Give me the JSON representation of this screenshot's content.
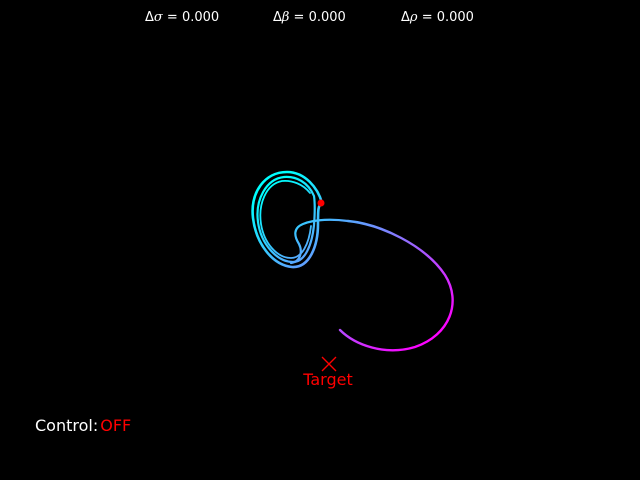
{
  "params": {
    "sigma": {
      "symbol": "σ",
      "delta": "Δ",
      "value": "0.000"
    },
    "beta": {
      "symbol": "β",
      "delta": "Δ",
      "value": "0.000"
    },
    "rho": {
      "symbol": "ρ",
      "delta": "Δ",
      "value": "0.000"
    },
    "equals": " = "
  },
  "target": {
    "label": "Target",
    "color": "#ff0000"
  },
  "control": {
    "label": "Control:",
    "value": "OFF",
    "value_color": "#ff0000"
  },
  "trajectory": {
    "colormap": [
      "#00ffff",
      "#ff00ff"
    ],
    "current_point_color": "#ff0000"
  }
}
